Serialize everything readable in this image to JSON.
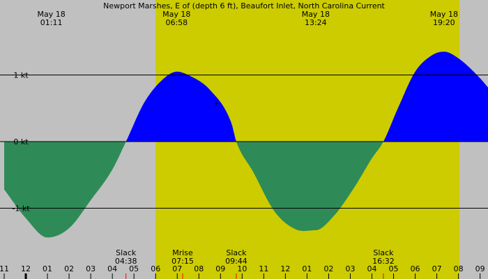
{
  "chart_data": {
    "type": "area",
    "title": "Newport Marshes, E of (depth 6 ft), Beaufort Inlet, North Carolina Current",
    "ylabel": "",
    "xlabel": "",
    "units": "kt",
    "x_unit": "hour of day (May 17 23:00 to May 19 09:00)",
    "ylim": [
      -1.6,
      1.35
    ],
    "xlim": [
      -1,
      33.5
    ],
    "y_ticks": [
      {
        "value": 1,
        "label": "1 kt"
      },
      {
        "value": 0,
        "label": "0 kt"
      },
      {
        "value": -1,
        "label": "-1 kt"
      }
    ],
    "x_ticks": [
      {
        "value": -1,
        "label": "11"
      },
      {
        "value": 0,
        "label": "12"
      },
      {
        "value": 1,
        "label": "01"
      },
      {
        "value": 2,
        "label": "02"
      },
      {
        "value": 3,
        "label": "03"
      },
      {
        "value": 4,
        "label": "04"
      },
      {
        "value": 5,
        "label": "05"
      },
      {
        "value": 6,
        "label": "06"
      },
      {
        "value": 7,
        "label": "07"
      },
      {
        "value": 8,
        "label": "08"
      },
      {
        "value": 9,
        "label": "09"
      },
      {
        "value": 10,
        "label": "10"
      },
      {
        "value": 11,
        "label": "11"
      },
      {
        "value": 12,
        "label": "12"
      },
      {
        "value": 13,
        "label": "01"
      },
      {
        "value": 14,
        "label": "02"
      },
      {
        "value": 15,
        "label": "03"
      },
      {
        "value": 16,
        "label": "04"
      },
      {
        "value": 17,
        "label": "05"
      },
      {
        "value": 18,
        "label": "06"
      },
      {
        "value": 19,
        "label": "07"
      },
      {
        "value": 20,
        "label": "08"
      },
      {
        "value": 21,
        "label": "09"
      },
      {
        "value": 22,
        "label": "10"
      },
      {
        "value": 23,
        "label": "11"
      },
      {
        "value": 24,
        "label": "12"
      },
      {
        "value": 25,
        "label": "01"
      },
      {
        "value": 26,
        "label": "02"
      },
      {
        "value": 27,
        "label": "03"
      },
      {
        "value": 28,
        "label": "04"
      },
      {
        "value": 29,
        "label": "05"
      },
      {
        "value": 30,
        "label": "06"
      },
      {
        "value": 31,
        "label": "07"
      },
      {
        "value": 32,
        "label": "08"
      },
      {
        "value": 33,
        "label": "09"
      }
    ],
    "daylight": {
      "start": 6.0,
      "end": 20.05
    },
    "top_labels": [
      {
        "time": 1.18,
        "date": "May 18",
        "clock": "01:11"
      },
      {
        "time": 6.97,
        "date": "May 18",
        "clock": "06:58"
      },
      {
        "time": 13.4,
        "date": "May 18",
        "clock": "13:24"
      },
      {
        "time": 19.33,
        "date": "May 18",
        "clock": "19:20"
      }
    ],
    "bottom_events": [
      {
        "time": 4.63,
        "name": "Slack",
        "clock": "04:38"
      },
      {
        "time": 7.25,
        "name": "Mrise",
        "clock": "07:15"
      },
      {
        "time": 9.73,
        "name": "Slack",
        "clock": "09:44"
      },
      {
        "time": 16.53,
        "name": "Slack",
        "clock": "16:32"
      }
    ],
    "red_tick_times": [
      4.63,
      7.25,
      9.73,
      16.53
    ],
    "series": [
      {
        "name": "current",
        "x": [
          -1,
          0,
          1.0,
          2.0,
          3.0,
          4.0,
          4.63,
          5.5,
          6.5,
          7.0,
          7.5,
          8.5,
          9.5,
          9.73,
          10.5,
          11.5,
          12.5,
          13.4,
          14.2,
          15.2,
          16.0,
          16.53,
          17.2,
          18.0,
          18.8,
          19.33,
          20.0,
          21.0,
          21.6
        ],
        "values": [
          -0.72,
          -1.15,
          -1.44,
          -1.3,
          -0.88,
          -0.42,
          0.0,
          0.6,
          0.98,
          1.05,
          1.0,
          0.78,
          0.28,
          0.0,
          -0.45,
          -1.05,
          -1.32,
          -1.33,
          -1.13,
          -0.68,
          -0.25,
          0.0,
          0.5,
          1.05,
          1.3,
          1.35,
          1.25,
          0.95,
          0.72
        ],
        "flood_color": "#0000ff",
        "ebb_color": "#2e8b57"
      }
    ],
    "colors": {
      "night": "#c0c0c0",
      "day": "#cccc00",
      "flood": "#0000ff",
      "ebb": "#2e8b57",
      "event_tick": "#ff0000"
    }
  }
}
